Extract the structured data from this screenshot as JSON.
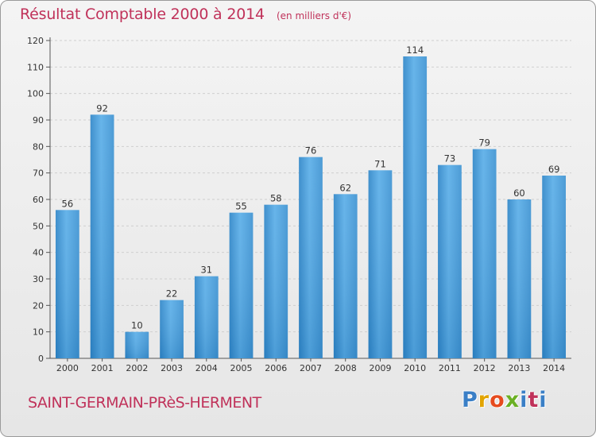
{
  "header": {
    "title": "Résultat Comptable 2000 à 2014",
    "subtitle": "(en milliers d'€)"
  },
  "footer": {
    "commune": "SAINT-GERMAIN-PRèS-HERMENT",
    "logo_text": "Proxiti"
  },
  "colors": {
    "title": "#c0325a",
    "bar_light": "#62b3ec",
    "bar_dark": "#2a7ec0",
    "grid": "#d0d0d0"
  },
  "chart_data": {
    "type": "bar",
    "title": "Résultat Comptable 2000 à 2014",
    "subtitle": "(en milliers d'€)",
    "xlabel": "",
    "ylabel": "",
    "categories": [
      "2000",
      "2001",
      "2002",
      "2003",
      "2004",
      "2005",
      "2006",
      "2007",
      "2008",
      "2009",
      "2010",
      "2011",
      "2012",
      "2013",
      "2014"
    ],
    "values": [
      56,
      92,
      10,
      22,
      31,
      55,
      58,
      76,
      62,
      71,
      114,
      73,
      79,
      60,
      69
    ],
    "ylim": [
      0,
      120
    ],
    "yticks": [
      0,
      10,
      20,
      30,
      40,
      50,
      60,
      70,
      80,
      90,
      100,
      110,
      120
    ],
    "grid": true,
    "data_labels": true
  }
}
